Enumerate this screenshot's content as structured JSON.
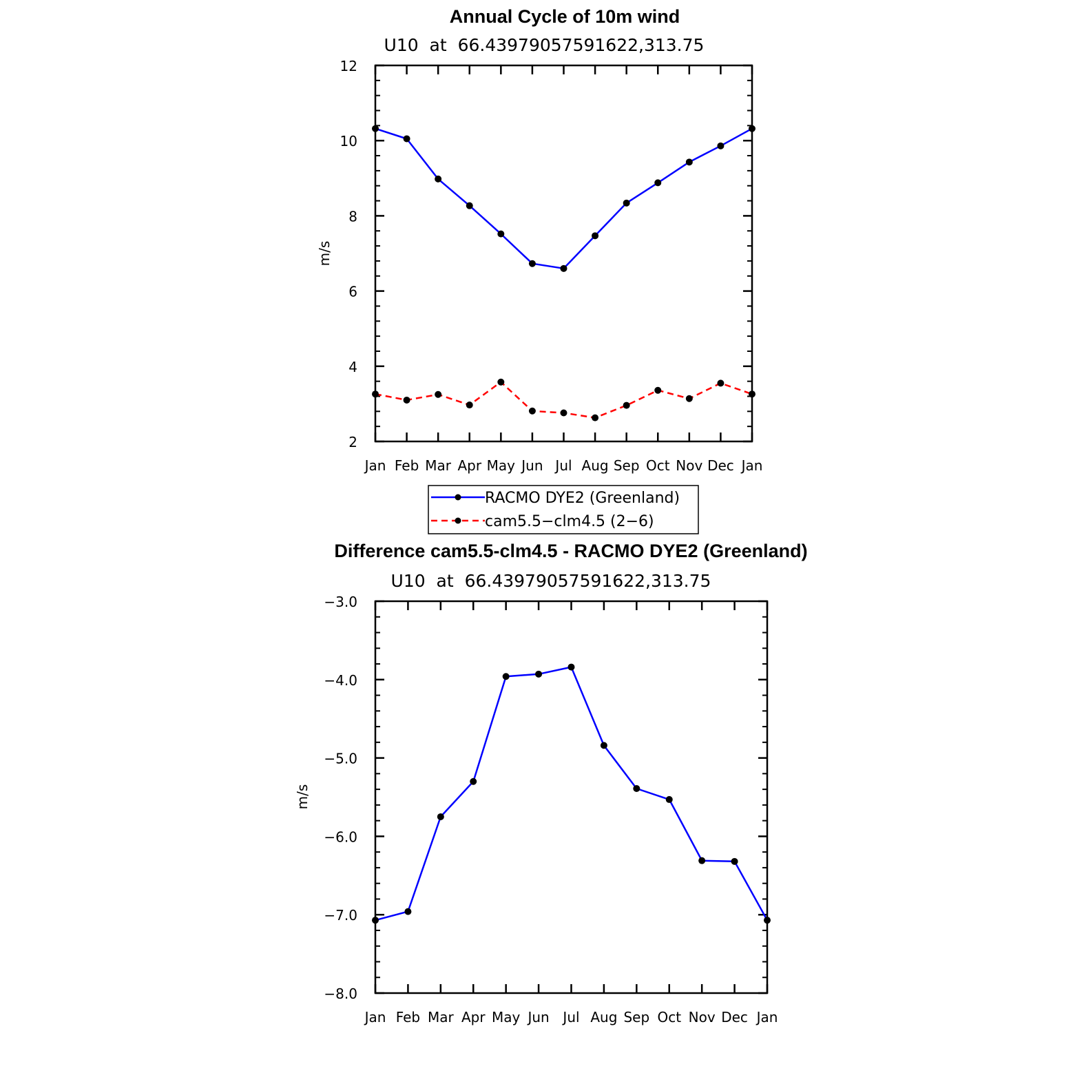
{
  "chart_data": [
    {
      "type": "line",
      "title": "Annual Cycle of 10m wind",
      "subtitle": "U10  at  66.43979057591622,313.75",
      "xlabel": "",
      "ylabel": "m/s",
      "categories": [
        "Jan",
        "Feb",
        "Mar",
        "Apr",
        "May",
        "Jun",
        "Jul",
        "Aug",
        "Sep",
        "Oct",
        "Nov",
        "Dec",
        "Jan"
      ],
      "ylim": [
        2,
        12
      ],
      "yticks": [
        2,
        4,
        6,
        8,
        10,
        12
      ],
      "ytick_labels": [
        "2",
        "4",
        "6",
        "8",
        "10",
        "12"
      ],
      "series": [
        {
          "name": "RACMO DYE2 (Greenland)",
          "color": "#0000ff",
          "dashed": false,
          "values": [
            10.32,
            10.05,
            8.98,
            8.27,
            7.52,
            6.73,
            6.6,
            7.47,
            8.34,
            8.88,
            9.43,
            9.86,
            10.32
          ]
        },
        {
          "name": "cam5.5−clm4.5 (2−6)",
          "color": "#ff0000",
          "dashed": true,
          "values": [
            3.26,
            3.1,
            3.25,
            2.97,
            3.58,
            2.81,
            2.76,
            2.63,
            2.96,
            3.36,
            3.14,
            3.55,
            3.26
          ]
        }
      ],
      "legend": "below"
    },
    {
      "type": "line",
      "title": "Difference cam5.5-clm4.5 - RACMO DYE2 (Greenland)",
      "subtitle": "U10  at  66.43979057591622,313.75",
      "xlabel": "",
      "ylabel": "m/s",
      "categories": [
        "Jan",
        "Feb",
        "Mar",
        "Apr",
        "May",
        "Jun",
        "Jul",
        "Aug",
        "Sep",
        "Oct",
        "Nov",
        "Dec",
        "Jan"
      ],
      "ylim": [
        -8.0,
        -3.0
      ],
      "yticks": [
        -8.0,
        -7.0,
        -6.0,
        -5.0,
        -4.0,
        -3.0
      ],
      "ytick_labels": [
        "−8.0",
        "−7.0",
        "−6.0",
        "−5.0",
        "−4.0",
        "−3.0"
      ],
      "series": [
        {
          "color": "#0000ff",
          "dashed": false,
          "values": [
            -7.07,
            -6.96,
            -5.75,
            -5.3,
            -3.96,
            -3.93,
            -3.84,
            -4.84,
            -5.39,
            -5.53,
            -6.31,
            -6.32,
            -7.07
          ]
        }
      ]
    }
  ]
}
